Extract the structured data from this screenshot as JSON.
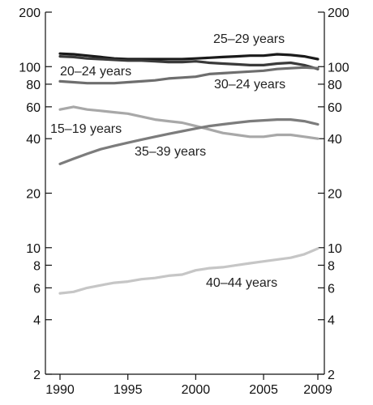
{
  "chart_data": {
    "type": "line",
    "y_scale": "log",
    "ylim": [
      2,
      200
    ],
    "xlim": [
      1990,
      2009
    ],
    "y_ticks": [
      2,
      4,
      6,
      8,
      10,
      20,
      40,
      60,
      80,
      100,
      200
    ],
    "x_ticks": [
      1990,
      1995,
      2000,
      2005,
      2009
    ],
    "grid": false,
    "legend": "inline labels",
    "x": [
      1990,
      1991,
      1992,
      1993,
      1994,
      1995,
      1996,
      1997,
      1998,
      1999,
      2000,
      2001,
      2002,
      2003,
      2004,
      2005,
      2006,
      2007,
      2008,
      2009
    ],
    "series": [
      {
        "name": "25–29 years",
        "color": "#1a1a1a",
        "values": [
          118,
          117,
          115,
          113,
          111,
          110,
          110,
          110,
          110,
          110,
          111,
          112,
          113,
          114,
          115,
          115,
          117,
          116,
          114,
          110
        ]
      },
      {
        "name": "20–24 years",
        "color": "#3a3a3a",
        "values": [
          114,
          113,
          111,
          110,
          109,
          108,
          108,
          107,
          106,
          106,
          107,
          105,
          104,
          103,
          102,
          102,
          104,
          105,
          102,
          97
        ]
      },
      {
        "name": "30–24 years",
        "color": "#6e6e6e",
        "values": [
          83,
          82,
          81,
          81,
          81,
          82,
          83,
          84,
          86,
          87,
          88,
          91,
          92,
          93,
          94,
          95,
          97,
          98,
          99,
          98
        ]
      },
      {
        "name": "15–19 years",
        "color": "#a8a8a8",
        "values": [
          58,
          60,
          58,
          57,
          56,
          55,
          53,
          51,
          50,
          49,
          47,
          45,
          43,
          42,
          41,
          41,
          42,
          42,
          41,
          40
        ]
      },
      {
        "name": "35–39 years",
        "color": "#7c7c7c",
        "values": [
          29,
          31,
          33,
          35,
          36.5,
          38,
          39.5,
          41,
          42.5,
          44,
          45.5,
          47,
          48,
          49,
          50,
          50.5,
          51,
          51,
          50,
          48
        ]
      },
      {
        "name": "40–44 years",
        "color": "#c6c6c6",
        "values": [
          5.6,
          5.7,
          6.0,
          6.2,
          6.4,
          6.5,
          6.7,
          6.8,
          7.0,
          7.1,
          7.5,
          7.7,
          7.8,
          8.0,
          8.2,
          8.4,
          8.6,
          8.8,
          9.2,
          9.9
        ]
      }
    ]
  }
}
